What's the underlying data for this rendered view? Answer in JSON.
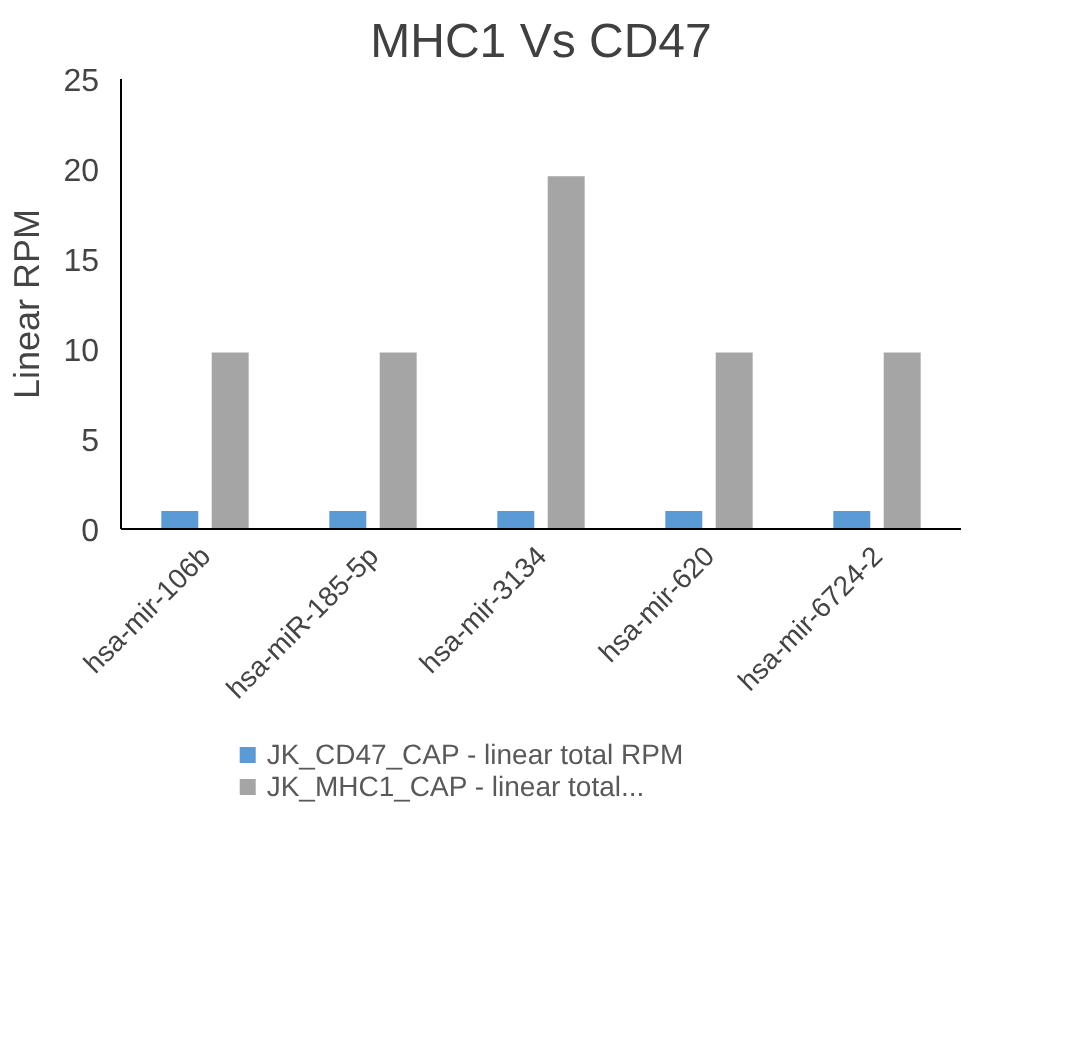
{
  "chart_data": {
    "type": "bar",
    "title": "MHC1 Vs CD47",
    "ylabel": "Linear RPM",
    "categories": [
      "hsa-mir-106b",
      "hsa-miR-185-5p",
      "hsa-mir-3134",
      "hsa-mir-620",
      "hsa-mir-6724-2"
    ],
    "series": [
      {
        "name": "JK_CD47_CAP - linear total RPM",
        "color": "#5b9bd5",
        "values": [
          1,
          1,
          1,
          1,
          1
        ]
      },
      {
        "name": "JK_MHC1_CAP - linear total...",
        "color": "#a5a5a5",
        "values": [
          9.8,
          9.8,
          19.6,
          9.8,
          9.8
        ]
      }
    ],
    "ylim": [
      0,
      25
    ],
    "yticks": [
      0,
      5,
      10,
      15,
      20,
      25
    ],
    "grid": false,
    "legend": "bottom"
  }
}
